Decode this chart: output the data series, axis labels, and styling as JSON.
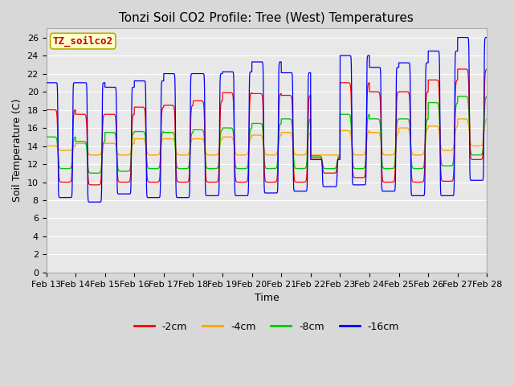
{
  "title": "Tonzi Soil CO2 Profile: Tree (West) Temperatures",
  "xlabel": "Time",
  "ylabel": "Soil Temperature (C)",
  "legend_label": "TZ_soilco2",
  "ylim": [
    0,
    27
  ],
  "yticks": [
    0,
    2,
    4,
    6,
    8,
    10,
    12,
    14,
    16,
    18,
    20,
    22,
    24,
    26
  ],
  "line_colors": {
    "-2cm": "#ff0000",
    "-4cm": "#ffa500",
    "-8cm": "#00cc00",
    "-16cm": "#0000ff"
  },
  "fig_bg_color": "#d8d8d8",
  "plot_bg_color": "#e8e8e8",
  "grid_color": "#ffffff",
  "title_fontsize": 11,
  "axis_fontsize": 9,
  "tick_fontsize": 8,
  "legend_fontsize": 9,
  "n_days": 15,
  "start_day": 13
}
